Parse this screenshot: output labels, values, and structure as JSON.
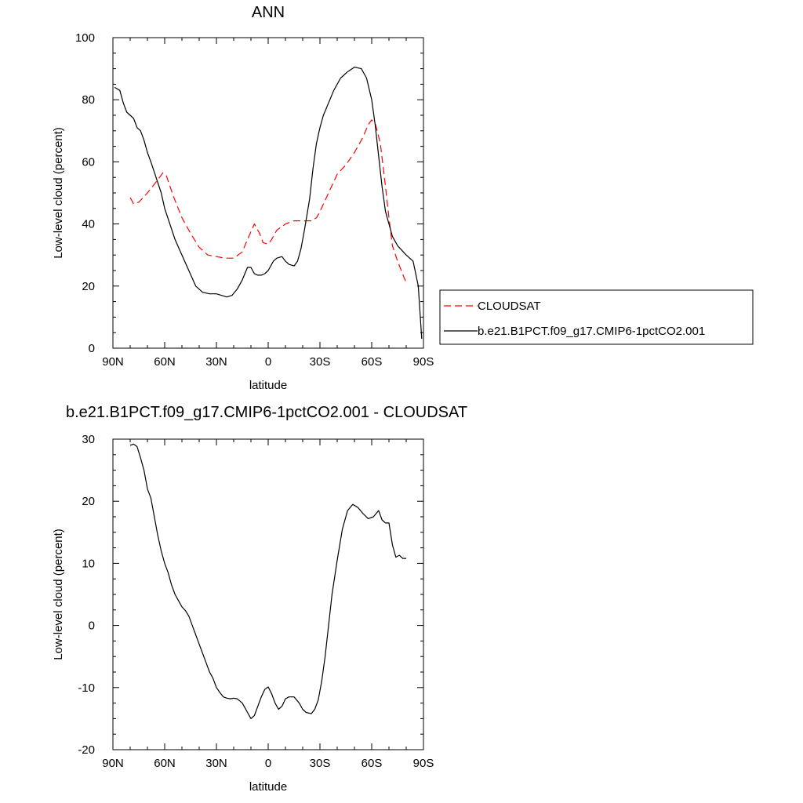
{
  "chart_data": [
    {
      "type": "line",
      "title": "ANN",
      "xlabel": "latitude",
      "ylabel": "Low-level cloud (percent)",
      "xlim": [
        90,
        -90
      ],
      "ylim": [
        0,
        100
      ],
      "xticks": [
        90,
        60,
        30,
        0,
        -30,
        -60,
        -90
      ],
      "xtick_labels": [
        "90N",
        "60N",
        "30N",
        "0",
        "30S",
        "60S",
        "90S"
      ],
      "yticks": [
        0,
        20,
        40,
        60,
        80,
        100
      ],
      "ytick_labels": [
        "0",
        "20",
        "40",
        "60",
        "80",
        "100"
      ],
      "legend_position": "right",
      "series": [
        {
          "name": "CLOUDSAT",
          "color": "#ff0000",
          "dash": "dashed",
          "x": [
            80,
            78,
            75,
            70,
            65,
            61,
            59,
            55,
            50,
            45,
            40,
            35,
            30,
            25,
            20,
            15,
            12,
            8,
            5,
            3,
            0,
            -2,
            -5,
            -10,
            -15,
            -20,
            -25,
            -28,
            -30,
            -35,
            -40,
            -45,
            -50,
            -55,
            -58,
            -60,
            -62,
            -65,
            -68,
            -70,
            -72,
            -75,
            -80
          ],
          "y": [
            48.5,
            46.5,
            47,
            50,
            53.5,
            56.5,
            55.5,
            49,
            42,
            37,
            32.5,
            30,
            29.5,
            29,
            29,
            31,
            35,
            40,
            37,
            34,
            33.5,
            35,
            38,
            40,
            41,
            41,
            41,
            42,
            44,
            50,
            56,
            59,
            63,
            68,
            72,
            73.5,
            72.5,
            66,
            52,
            42,
            33,
            28,
            21
          ]
        },
        {
          "name": "b.e21.B1PCT.f09_g17.CMIP6-1pctCO2.001",
          "color": "#000000",
          "dash": "solid",
          "x": [
            89,
            86,
            84,
            82,
            80,
            78,
            76,
            74,
            72,
            70,
            68,
            65,
            62,
            60,
            57,
            54,
            50,
            46,
            42,
            38,
            34,
            30,
            27,
            24,
            21,
            18,
            15,
            12,
            10,
            8,
            6,
            4,
            2,
            0,
            -3,
            -5,
            -8,
            -10,
            -12,
            -15,
            -17,
            -19,
            -21,
            -24,
            -26,
            -28,
            -30,
            -32,
            -35,
            -38,
            -42,
            -46,
            -50,
            -54,
            -57,
            -60,
            -62,
            -64,
            -66,
            -68,
            -70,
            -72,
            -75,
            -80,
            -84,
            -87,
            -89
          ],
          "y": [
            84,
            83,
            79,
            76,
            75,
            74,
            71,
            70,
            67,
            63,
            60,
            55,
            50,
            45,
            40,
            35,
            30,
            25,
            20,
            18,
            17.5,
            17.5,
            17,
            16.5,
            17,
            19,
            22,
            26,
            26,
            24,
            23.5,
            23.5,
            24,
            25,
            28,
            29,
            29.5,
            28,
            27,
            26.5,
            28,
            32,
            38,
            48,
            58,
            66,
            71,
            75,
            79,
            83,
            87,
            89,
            90.5,
            90,
            87,
            80,
            72,
            62,
            52,
            44,
            40,
            36,
            33,
            30,
            28,
            20,
            3
          ]
        }
      ]
    },
    {
      "type": "line",
      "title": "b.e21.B1PCT.f09_g17.CMIP6-1pctCO2.001 - CLOUDSAT",
      "xlabel": "latitude",
      "ylabel": "Low-level cloud (percent)",
      "xlim": [
        90,
        -90
      ],
      "ylim": [
        -20,
        30
      ],
      "xticks": [
        90,
        60,
        30,
        0,
        -30,
        -60,
        -90
      ],
      "xtick_labels": [
        "90N",
        "60N",
        "30N",
        "0",
        "30S",
        "60S",
        "90S"
      ],
      "yticks": [
        -20,
        -10,
        0,
        10,
        20,
        30
      ],
      "ytick_labels": [
        "-20",
        "-10",
        "0",
        "10",
        "20",
        "30"
      ],
      "series": [
        {
          "color": "#000000",
          "dash": "solid",
          "x": [
            80,
            78,
            76,
            74,
            72,
            70,
            68,
            66,
            64,
            62,
            60,
            58,
            56,
            54,
            52,
            50,
            48,
            46,
            44,
            42,
            40,
            38,
            36,
            34,
            32,
            30,
            28,
            26,
            24,
            22,
            20,
            18,
            15,
            12,
            10,
            8,
            6,
            4,
            2,
            0,
            -2,
            -4,
            -6,
            -8,
            -10,
            -12,
            -15,
            -18,
            -20,
            -22,
            -25,
            -27,
            -29,
            -31,
            -33,
            -35,
            -37,
            -40,
            -43,
            -46,
            -49,
            -52,
            -55,
            -58,
            -61,
            -64,
            -66,
            -68,
            -70,
            -72,
            -74,
            -76,
            -78,
            -80
          ],
          "y": [
            29,
            29.2,
            28.8,
            27,
            25,
            22,
            20.5,
            17.5,
            14.5,
            12,
            10,
            8.5,
            6.5,
            5,
            4,
            3,
            2.4,
            1.5,
            0,
            -1.5,
            -3,
            -4.5,
            -6,
            -7.5,
            -8.5,
            -10,
            -10.8,
            -11.5,
            -11.7,
            -11.8,
            -11.7,
            -11.8,
            -12.5,
            -14,
            -15,
            -14.5,
            -13,
            -11.5,
            -10.3,
            -9.9,
            -11,
            -12.5,
            -13.5,
            -13,
            -11.8,
            -11.5,
            -11.5,
            -12.5,
            -13.5,
            -14,
            -14.2,
            -13.5,
            -12,
            -9,
            -5,
            0,
            5,
            10.5,
            15.5,
            18.5,
            19.5,
            19,
            18,
            17.2,
            17.5,
            18.5,
            17,
            16.5,
            16.5,
            13,
            11,
            11.3,
            10.8,
            10.8
          ]
        }
      ]
    }
  ]
}
